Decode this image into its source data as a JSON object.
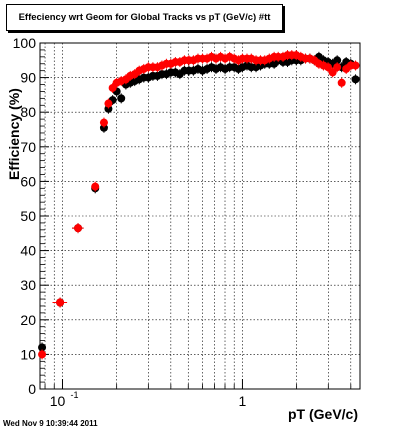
{
  "title": "Effeciency wrt Geom for Global Tracks vs pT (GeV/c) #tt",
  "timestamp": "Wed Nov  9 10:39:44 2011",
  "colors": {
    "series_black": "#000000",
    "series_red": "#ff0000",
    "grid": "#000000"
  },
  "chart_data": {
    "type": "scatter",
    "xlabel": "pT (GeV/c)",
    "ylabel": "Efficiency (%)",
    "xscale": "log",
    "xlim": [
      0.075,
      4.5
    ],
    "ylim": [
      0,
      100
    ],
    "grid": true,
    "x_tick_labels": [
      {
        "value": 0.1,
        "base": "10",
        "exp": "-1"
      },
      {
        "value": 1,
        "base": "1",
        "exp": ""
      }
    ],
    "y_ticks": [
      0,
      10,
      20,
      30,
      40,
      50,
      60,
      70,
      80,
      90,
      100
    ],
    "series": [
      {
        "color": "#000000",
        "x": [
          0.077,
          0.097,
          0.122,
          0.152,
          0.17,
          0.18,
          0.19,
          0.2,
          0.212,
          0.225,
          0.238,
          0.252,
          0.267,
          0.283,
          0.3,
          0.318,
          0.337,
          0.357,
          0.378,
          0.4,
          0.424,
          0.449,
          0.476,
          0.504,
          0.534,
          0.566,
          0.6,
          0.636,
          0.673,
          0.713,
          0.756,
          0.801,
          0.849,
          0.9,
          0.95,
          1.0,
          1.06,
          1.12,
          1.19,
          1.26,
          1.33,
          1.41,
          1.5,
          1.58,
          1.68,
          1.78,
          1.88,
          1.99,
          2.11,
          2.24,
          2.37,
          2.51,
          2.66,
          2.82,
          2.99,
          3.17,
          3.36,
          3.56,
          3.77,
          4.0,
          4.25
        ],
        "y": [
          12.0,
          25.0,
          46.5,
          58.0,
          75.5,
          81.0,
          83.5,
          86.0,
          84.0,
          88.0,
          88.5,
          89.0,
          89.5,
          90.0,
          90.0,
          90.5,
          90.5,
          91.0,
          91.0,
          91.5,
          91.5,
          91.0,
          92.0,
          92.0,
          92.0,
          92.5,
          92.0,
          92.5,
          93.0,
          92.5,
          93.0,
          92.5,
          93.0,
          93.0,
          92.5,
          93.0,
          93.5,
          93.0,
          93.0,
          93.5,
          94.0,
          94.0,
          94.0,
          95.0,
          94.5,
          94.5,
          95.0,
          95.0,
          95.0,
          95.5,
          95.5,
          95.0,
          96.0,
          95.0,
          94.5,
          94.0,
          95.0,
          93.0,
          94.5,
          94.0,
          89.5
        ],
        "xerr": [
          0.002,
          0.009,
          0.009,
          0.005,
          0.003,
          0.003,
          0.003,
          0.003,
          0.003,
          0.003,
          0.003,
          0.003,
          0.003,
          0.003,
          0.003,
          0.003,
          0.003,
          0.003,
          0.003,
          0.003,
          0.003,
          0.003,
          0.003,
          0.003,
          0.003,
          0.003,
          0.003,
          0.003,
          0.003,
          0.003,
          0.003,
          0.003,
          0.003,
          0.003,
          0.003,
          0.003,
          0.003,
          0.003,
          0.003,
          0.003,
          0.003,
          0.003,
          0.003,
          0.003,
          0.003,
          0.003,
          0.003,
          0.003,
          0.003,
          0.003,
          0.003,
          0.003,
          0.003,
          0.003,
          0.003,
          0.003,
          0.003,
          0.003,
          0.003,
          0.003,
          0.003
        ]
      },
      {
        "color": "#ff0000",
        "x": [
          0.077,
          0.097,
          0.122,
          0.152,
          0.17,
          0.18,
          0.19,
          0.2,
          0.212,
          0.225,
          0.238,
          0.252,
          0.267,
          0.283,
          0.3,
          0.318,
          0.337,
          0.357,
          0.378,
          0.4,
          0.424,
          0.449,
          0.476,
          0.504,
          0.534,
          0.566,
          0.6,
          0.636,
          0.673,
          0.713,
          0.756,
          0.801,
          0.849,
          0.9,
          0.95,
          1.0,
          1.06,
          1.12,
          1.19,
          1.26,
          1.33,
          1.41,
          1.5,
          1.58,
          1.68,
          1.78,
          1.88,
          1.99,
          2.11,
          2.24,
          2.37,
          2.51,
          2.66,
          2.82,
          2.99,
          3.17,
          3.36,
          3.56,
          3.77,
          4.0,
          4.25
        ],
        "y": [
          10.0,
          25.0,
          46.5,
          58.5,
          77.0,
          82.5,
          87.0,
          88.5,
          89.0,
          89.5,
          90.5,
          91.0,
          92.0,
          92.5,
          93.0,
          93.0,
          93.0,
          93.5,
          94.0,
          94.0,
          94.5,
          94.5,
          95.0,
          95.0,
          95.0,
          95.5,
          95.5,
          95.5,
          96.0,
          95.5,
          96.0,
          95.5,
          96.0,
          95.5,
          95.0,
          95.5,
          95.5,
          95.5,
          95.0,
          95.0,
          95.0,
          95.5,
          96.0,
          96.0,
          96.0,
          96.5,
          96.5,
          96.5,
          96.0,
          95.5,
          95.5,
          95.0,
          94.0,
          93.5,
          93.0,
          91.5,
          93.0,
          88.5,
          92.5,
          93.5,
          93.5
        ],
        "xerr": [
          0.002,
          0.009,
          0.009,
          0.005,
          0.003,
          0.003,
          0.003,
          0.003,
          0.003,
          0.003,
          0.003,
          0.003,
          0.003,
          0.003,
          0.003,
          0.003,
          0.003,
          0.003,
          0.003,
          0.003,
          0.003,
          0.003,
          0.003,
          0.003,
          0.003,
          0.003,
          0.003,
          0.003,
          0.003,
          0.003,
          0.003,
          0.003,
          0.003,
          0.003,
          0.003,
          0.003,
          0.003,
          0.003,
          0.003,
          0.003,
          0.003,
          0.003,
          0.003,
          0.003,
          0.003,
          0.003,
          0.003,
          0.003,
          0.003,
          0.003,
          0.003,
          0.003,
          0.003,
          0.003,
          0.003,
          0.003,
          0.003,
          0.003,
          0.003,
          0.003,
          0.003
        ]
      }
    ]
  }
}
